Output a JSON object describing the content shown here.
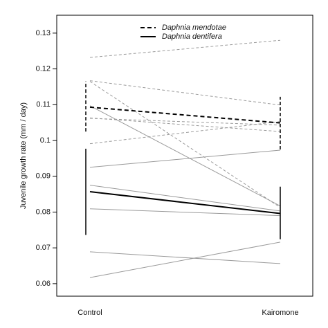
{
  "chart_data": {
    "type": "reaction-norm",
    "y_label": "Juvenile growth rate (mm / day)",
    "categories": [
      "Control",
      "Kairomone"
    ],
    "ylim": [
      0.0565,
      0.135
    ],
    "yticks": [
      0.06,
      0.07,
      0.08,
      0.09,
      0.1,
      0.11,
      0.12,
      0.13
    ],
    "series": [
      {
        "name": "Daphnia mendotae",
        "color": "#000000",
        "dashed": true,
        "values": [
          0.1093,
          0.1049
        ],
        "lo": [
          0.1025,
          0.0975
        ],
        "hi": [
          0.1165,
          0.1122
        ]
      },
      {
        "name": "Daphnia dentifera",
        "color": "#000000",
        "dashed": false,
        "values": [
          0.0857,
          0.0796
        ],
        "lo": [
          0.0736,
          0.0724
        ],
        "hi": [
          0.0977,
          0.0871
        ]
      }
    ],
    "lines": [
      {
        "color": "#9a9a9a",
        "dashed": true,
        "values": [
          0.1232,
          0.128
        ]
      },
      {
        "color": "#9a9a9a",
        "dashed": true,
        "values": [
          0.1167,
          0.1099
        ]
      },
      {
        "color": "#9a9a9a",
        "dashed": true,
        "values": [
          0.1165,
          0.0813
        ]
      },
      {
        "color": "#9a9a9a",
        "dashed": true,
        "values": [
          0.1062,
          0.1043
        ]
      },
      {
        "color": "#9a9a9a",
        "dashed": true,
        "values": [
          0.0991,
          0.1053
        ]
      },
      {
        "color": "#9a9a9a",
        "dashed": true,
        "values": [
          0.1063,
          0.1025
        ]
      },
      {
        "color": "#9a9a9a",
        "dashed": false,
        "values": [
          0.1097,
          0.0817
        ]
      },
      {
        "color": "#9a9a9a",
        "dashed": false,
        "values": [
          0.0925,
          0.0973
        ]
      },
      {
        "color": "#9a9a9a",
        "dashed": false,
        "values": [
          0.0875,
          0.0803
        ]
      },
      {
        "color": "#9a9a9a",
        "dashed": false,
        "values": [
          0.0809,
          0.079
        ]
      },
      {
        "color": "#9a9a9a",
        "dashed": false,
        "values": [
          0.0689,
          0.0656
        ]
      },
      {
        "color": "#9a9a9a",
        "dashed": false,
        "values": [
          0.0617,
          0.0716
        ]
      }
    ]
  }
}
